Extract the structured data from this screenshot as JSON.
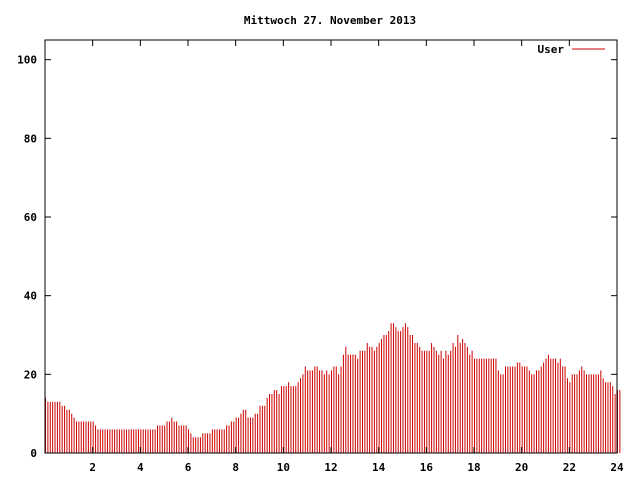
{
  "chart_data": {
    "type": "bar",
    "title": "Mittwoch 27. November 2013",
    "xlabel": "",
    "ylabel": "",
    "xlim": [
      0,
      24
    ],
    "ylim": [
      0,
      105
    ],
    "x_ticks": [
      "2",
      "4",
      "6",
      "8",
      "10",
      "12",
      "14",
      "16",
      "18",
      "20",
      "22",
      "24"
    ],
    "y_ticks": [
      "0",
      "20",
      "40",
      "60",
      "80",
      "100"
    ],
    "legend_position": "top-right",
    "grid": false,
    "series": [
      {
        "name": "User",
        "color": "#cc0000",
        "x_start": 0,
        "x_step": 0.1,
        "values": [
          14,
          13,
          13,
          13,
          13,
          13,
          13,
          12,
          12,
          11,
          11,
          10,
          9,
          8,
          8,
          8,
          8,
          8,
          8,
          8,
          8,
          7,
          6,
          6,
          6,
          6,
          6,
          6,
          6,
          6,
          6,
          6,
          6,
          6,
          6,
          6,
          6,
          6,
          6,
          6,
          6,
          6,
          6,
          6,
          6,
          6,
          6,
          7,
          7,
          7,
          7,
          8,
          8,
          9,
          8,
          8,
          7,
          7,
          7,
          7,
          6,
          5,
          4,
          4,
          4,
          4,
          5,
          5,
          5,
          5,
          6,
          6,
          6,
          6,
          6,
          6,
          7,
          7,
          8,
          8,
          9,
          9,
          10,
          11,
          11,
          9,
          9,
          9,
          10,
          10,
          12,
          12,
          12,
          14,
          15,
          15,
          16,
          16,
          15,
          17,
          17,
          17,
          18,
          17,
          17,
          17,
          18,
          19,
          20,
          22,
          21,
          21,
          21,
          22,
          22,
          21,
          21,
          20,
          21,
          20,
          21,
          22,
          22,
          20,
          22,
          25,
          27,
          25,
          25,
          25,
          25,
          24,
          26,
          26,
          26,
          28,
          27,
          27,
          26,
          27,
          28,
          29,
          30,
          30,
          31,
          33,
          33,
          32,
          31,
          31,
          32,
          33,
          32,
          30,
          30,
          28,
          28,
          27,
          26,
          26,
          26,
          26,
          28,
          27,
          26,
          25,
          26,
          24,
          26,
          25,
          26,
          28,
          27,
          30,
          28,
          29,
          28,
          27,
          25,
          26,
          24,
          24,
          24,
          24,
          24,
          24,
          24,
          24,
          24,
          24,
          21,
          20,
          20,
          22,
          22,
          22,
          22,
          22,
          23,
          23,
          22,
          22,
          22,
          21,
          20,
          20,
          21,
          21,
          22,
          23,
          24,
          25,
          24,
          24,
          24,
          23,
          24,
          22,
          22,
          19,
          18,
          20,
          20,
          20,
          21,
          22,
          21,
          20,
          20,
          20,
          20,
          20,
          20,
          21,
          19,
          18,
          18,
          18,
          17,
          15,
          16,
          16
        ]
      }
    ]
  }
}
